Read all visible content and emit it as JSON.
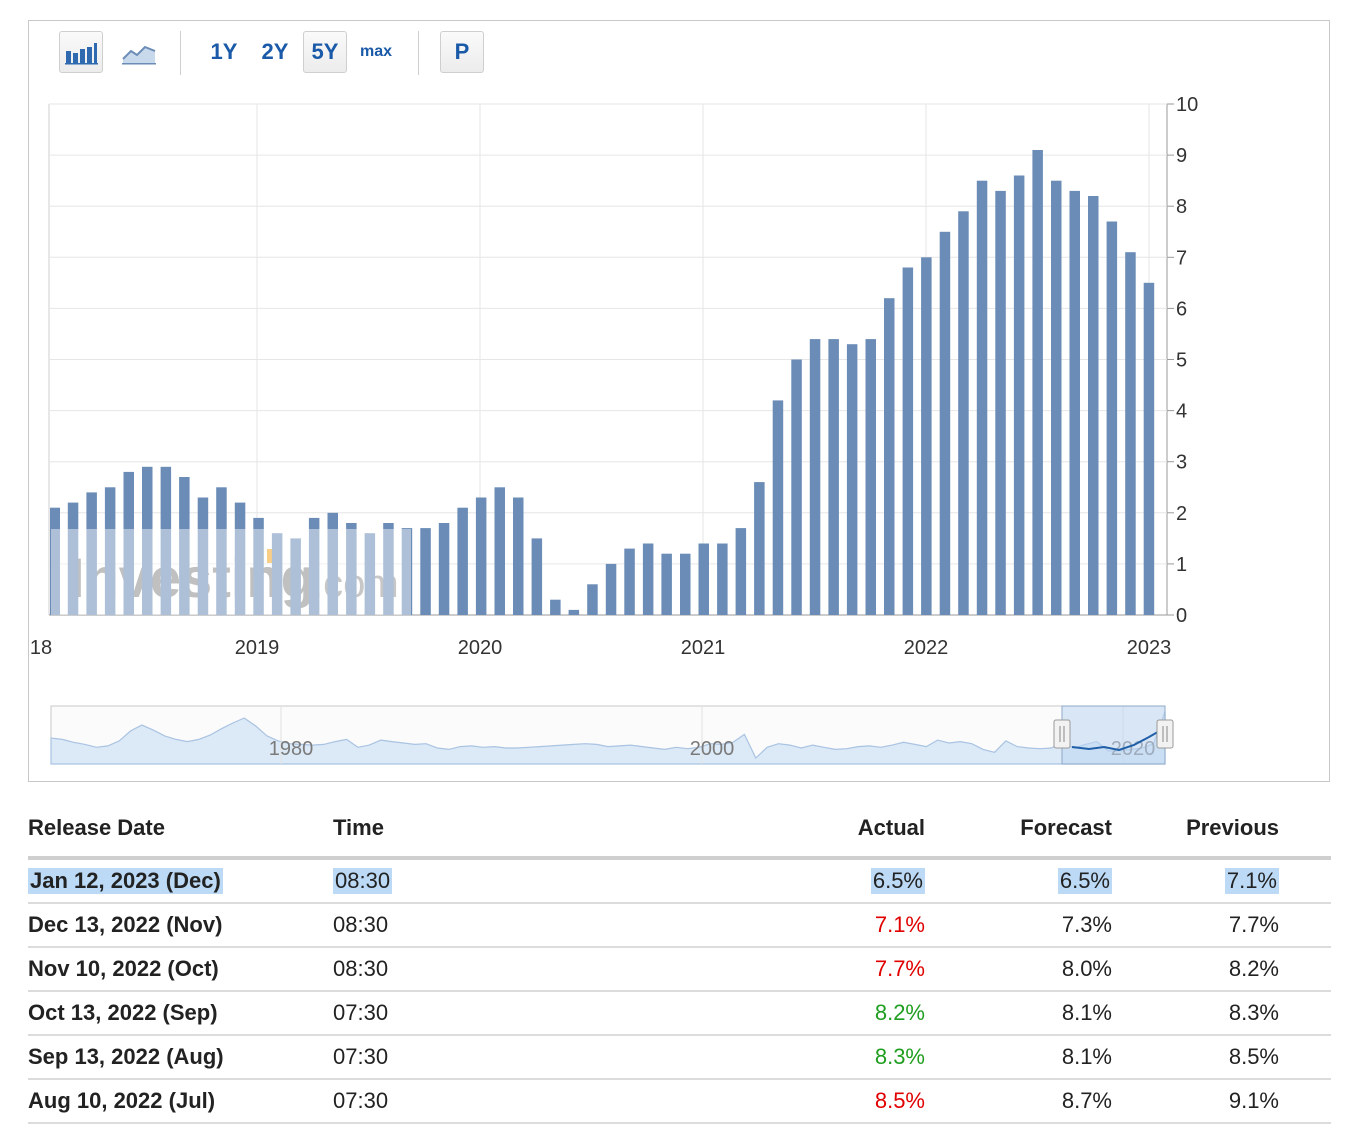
{
  "toolbar": {
    "range_1y": "1Y",
    "range_2y": "2Y",
    "range_5y": "5Y",
    "range_max": "max",
    "p_button": "P",
    "selected_range": "5Y",
    "icons": [
      "bar-chart-icon",
      "line-chart-icon"
    ]
  },
  "watermark": {
    "brand": "Investing",
    "suffix": ".com"
  },
  "chart_data": {
    "type": "bar",
    "categories": [
      "2018-02",
      "2018-03",
      "2018-04",
      "2018-05",
      "2018-06",
      "2018-07",
      "2018-08",
      "2018-09",
      "2018-10",
      "2018-11",
      "2018-12",
      "2019-01",
      "2019-02",
      "2019-03",
      "2019-04",
      "2019-05",
      "2019-06",
      "2019-07",
      "2019-08",
      "2019-09",
      "2019-10",
      "2019-11",
      "2019-12",
      "2020-01",
      "2020-02",
      "2020-03",
      "2020-04",
      "2020-05",
      "2020-06",
      "2020-07",
      "2020-08",
      "2020-09",
      "2020-10",
      "2020-11",
      "2020-12",
      "2021-01",
      "2021-02",
      "2021-03",
      "2021-04",
      "2021-05",
      "2021-06",
      "2021-07",
      "2021-08",
      "2021-09",
      "2021-10",
      "2021-11",
      "2021-12",
      "2022-01",
      "2022-02",
      "2022-03",
      "2022-04",
      "2022-05",
      "2022-06",
      "2022-07",
      "2022-08",
      "2022-09",
      "2022-10",
      "2022-11",
      "2022-12"
    ],
    "values": [
      2.2,
      2.4,
      2.5,
      2.8,
      2.9,
      2.9,
      2.7,
      2.3,
      2.5,
      2.2,
      1.9,
      1.6,
      1.5,
      1.9,
      2.0,
      1.8,
      1.6,
      1.8,
      1.7,
      1.7,
      1.8,
      2.1,
      2.3,
      2.5,
      2.3,
      1.5,
      0.3,
      0.1,
      0.6,
      1.0,
      1.3,
      1.4,
      1.2,
      1.2,
      1.4,
      1.4,
      1.7,
      2.6,
      4.2,
      5.0,
      5.4,
      5.4,
      5.3,
      5.4,
      6.2,
      6.8,
      7.0,
      7.5,
      7.9,
      8.5,
      8.3,
      8.6,
      9.1,
      8.5,
      8.3,
      8.2,
      7.7,
      7.1,
      6.5
    ],
    "first_partial_value": 2.1,
    "x_tick_labels": [
      "18",
      "2019",
      "2020",
      "2021",
      "2022",
      "2023"
    ],
    "y_tick_labels": [
      "0",
      "1",
      "2",
      "3",
      "4",
      "5",
      "6",
      "7",
      "8",
      "9",
      "10"
    ],
    "ylim": [
      0,
      10
    ],
    "grid": true,
    "bar_color": "#6a8cb6",
    "navigator": {
      "tick_labels": [
        "1980",
        "2000",
        "2020"
      ],
      "series": [
        2.8,
        2.6,
        2.2,
        1.9,
        1.5,
        1.7,
        2.4,
        3.8,
        4.6,
        3.9,
        3.1,
        2.6,
        2.3,
        2.6,
        3.2,
        4.1,
        4.9,
        5.6,
        4.5,
        3.1,
        2.4,
        2.0,
        1.9,
        1.8,
        1.9,
        2.3,
        2.6,
        1.5,
        1.8,
        2.5,
        2.3,
        2.1,
        1.9,
        2.0,
        1.4,
        1.2,
        1.6,
        1.7,
        1.5,
        1.6,
        1.4,
        1.4,
        1.5,
        1.6,
        1.7,
        1.8,
        1.9,
        2.0,
        1.9,
        1.6,
        1.7,
        1.8,
        1.6,
        1.4,
        1.2,
        1.5,
        1.3,
        1.5,
        2.0,
        1.9,
        2.2,
        3.3,
        0.0,
        1.5,
        2.0,
        1.8,
        1.4,
        1.8,
        1.5,
        1.2,
        1.3,
        1.6,
        1.7,
        1.5,
        1.8,
        2.2,
        1.9,
        1.6,
        2.5,
        2.1,
        2.3,
        2.0,
        1.2,
        0.8,
        2.4,
        1.6,
        1.4,
        1.3,
        1.4,
        2.2,
        1.4,
        1.9,
        2.3,
        1.0,
        1.0,
        1.2,
        1.4,
        2.0,
        6.5
      ],
      "highlight_color": "#1f5fa8",
      "fill_color": "#dce9f6"
    }
  },
  "table": {
    "headers": {
      "date": "Release Date",
      "time": "Time",
      "actual": "Actual",
      "forecast": "Forecast",
      "previous": "Previous"
    },
    "rows": [
      {
        "date": "Jan 12, 2023 (Dec)",
        "time": "08:30",
        "actual": "6.5%",
        "forecast": "6.5%",
        "previous": "7.1%",
        "actual_color": "#222222",
        "highlighted": true
      },
      {
        "date": "Dec 13, 2022 (Nov)",
        "time": "08:30",
        "actual": "7.1%",
        "forecast": "7.3%",
        "previous": "7.7%",
        "actual_color": "#e00000",
        "highlighted": false
      },
      {
        "date": "Nov 10, 2022 (Oct)",
        "time": "08:30",
        "actual": "7.7%",
        "forecast": "8.0%",
        "previous": "8.2%",
        "actual_color": "#e00000",
        "highlighted": false
      },
      {
        "date": "Oct 13, 2022 (Sep)",
        "time": "07:30",
        "actual": "8.2%",
        "forecast": "8.1%",
        "previous": "8.3%",
        "actual_color": "#1f9e1f",
        "highlighted": false
      },
      {
        "date": "Sep 13, 2022 (Aug)",
        "time": "07:30",
        "actual": "8.3%",
        "forecast": "8.1%",
        "previous": "8.5%",
        "actual_color": "#1f9e1f",
        "highlighted": false
      },
      {
        "date": "Aug 10, 2022 (Jul)",
        "time": "07:30",
        "actual": "8.5%",
        "forecast": "8.7%",
        "previous": "9.1%",
        "actual_color": "#e00000",
        "highlighted": false
      }
    ]
  }
}
